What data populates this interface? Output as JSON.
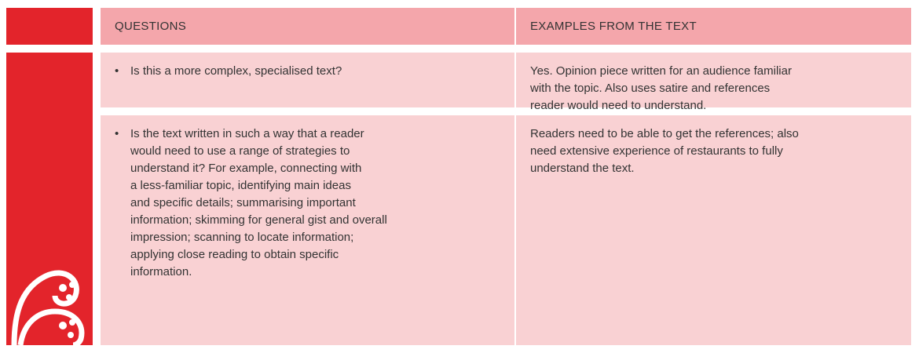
{
  "table": {
    "headers": [
      "QUESTIONS",
      "EXAMPLES FROM THE TEXT"
    ],
    "rows": [
      {
        "question": [
          "Is this a more complex, specialised text?"
        ],
        "example": [
          "Yes. Opinion piece written for an audience familiar",
          "with the topic. Also uses satire and references",
          "reader would need to understand."
        ]
      },
      {
        "question": [
          "Is the text written in such a way that a reader",
          "would need to use a range of strategies to",
          "understand it? For example, connecting with",
          "a less-familiar topic, identifying main ideas",
          "and specific details; summarising important",
          "information; skimming for general gist and overall",
          "impression; scanning to locate information;",
          "applying close reading to obtain specific",
          "information."
        ],
        "example": [
          "Readers need to be able to get the references; also",
          "need extensive experience of restaurants to fully",
          "understand the text."
        ]
      }
    ]
  }
}
